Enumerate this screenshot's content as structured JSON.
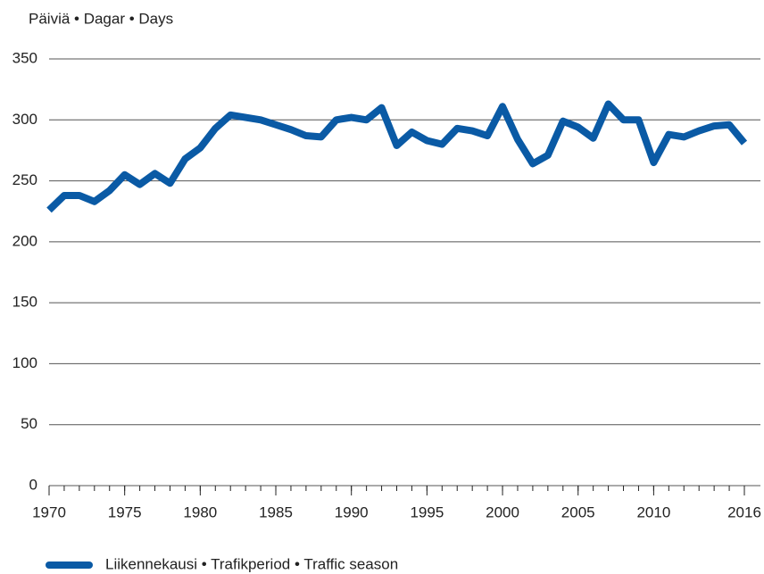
{
  "chart_data": {
    "type": "line",
    "y_label": "Päiviä • Dagar • Days",
    "x": [
      1970,
      1971,
      1972,
      1973,
      1974,
      1975,
      1976,
      1977,
      1978,
      1979,
      1980,
      1981,
      1982,
      1983,
      1984,
      1985,
      1986,
      1987,
      1988,
      1989,
      1990,
      1991,
      1992,
      1993,
      1994,
      1995,
      1996,
      1997,
      1998,
      1999,
      2000,
      2001,
      2002,
      2003,
      2004,
      2005,
      2006,
      2007,
      2008,
      2009,
      2010,
      2011,
      2012,
      2013,
      2014,
      2015,
      2016
    ],
    "series": [
      {
        "name": "Liikennekausi • Trafikperiod • Traffic season",
        "color": "#0a5aa5",
        "values": [
          226,
          238,
          238,
          233,
          242,
          255,
          247,
          256,
          248,
          268,
          277,
          293,
          304,
          302,
          300,
          296,
          292,
          287,
          286,
          300,
          302,
          300,
          310,
          279,
          290,
          283,
          280,
          293,
          291,
          287,
          311,
          284,
          264,
          271,
          299,
          294,
          285,
          313,
          300,
          300,
          265,
          288,
          286,
          291,
          295,
          296,
          281
        ]
      }
    ],
    "xlim": [
      1970,
      2016
    ],
    "xticks": [
      1970,
      1975,
      1980,
      1985,
      1990,
      1995,
      2000,
      2005,
      2010,
      2016
    ],
    "xminor_step": 1,
    "ylim": [
      0,
      350
    ],
    "yticks": [
      0,
      50,
      100,
      150,
      200,
      250,
      300,
      350
    ],
    "grid": true
  }
}
